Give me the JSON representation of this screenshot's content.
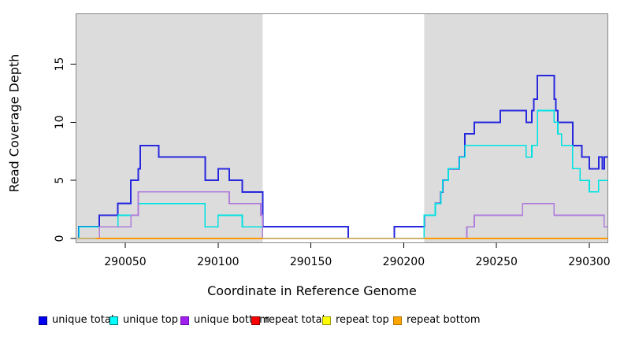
{
  "chart_data": {
    "type": "line",
    "subtype": "step-coverage",
    "title": "",
    "xlabel": "Coordinate in Reference Genome",
    "ylabel": "Read Coverage Depth",
    "xlim": [
      290023.5,
      290310
    ],
    "ylim": [
      -0.36,
      19.33
    ],
    "grid": false,
    "x_ticks": [
      290050,
      290100,
      290150,
      290200,
      290250,
      290300
    ],
    "x_tick_labels": [
      "290050",
      "290100",
      "290150",
      "290200",
      "290250",
      "290300"
    ],
    "y_ticks": [
      0,
      5,
      10,
      15
    ],
    "y_tick_labels": [
      "0",
      "5",
      "10",
      "15"
    ],
    "shaded_regions": {
      "color": "#DCDCDC",
      "ranges": [
        [
          290023.5,
          290124
        ],
        [
          290211,
          290310
        ]
      ]
    },
    "series": [
      {
        "name": "unique total",
        "color": "#2727DE",
        "width": 2,
        "segments": [
          [
            [
              290024,
              0
            ],
            [
              290025,
              1
            ],
            [
              290036,
              2
            ],
            [
              290046,
              3
            ],
            [
              290053,
              5
            ],
            [
              290057,
              6
            ],
            [
              290058,
              8
            ],
            [
              290068,
              7
            ],
            [
              290093,
              5
            ],
            [
              290100,
              6
            ],
            [
              290106,
              5
            ],
            [
              290113,
              4
            ],
            [
              290124,
              1
            ],
            [
              290170,
              0
            ],
            [
              290195,
              1
            ],
            [
              290211,
              2
            ],
            [
              290217,
              3
            ],
            [
              290220,
              4
            ],
            [
              290221,
              5
            ],
            [
              290224,
              6
            ],
            [
              290230,
              7
            ],
            [
              290233,
              9
            ],
            [
              290238,
              10
            ],
            [
              290252,
              11
            ],
            [
              290266,
              10
            ],
            [
              290269,
              11
            ],
            [
              290270,
              12
            ],
            [
              290272,
              14
            ],
            [
              290281,
              12
            ],
            [
              290282,
              11
            ],
            [
              290283,
              10
            ],
            [
              290291,
              8
            ],
            [
              290296,
              7
            ],
            [
              290300,
              6
            ],
            [
              290305,
              7
            ],
            [
              290307,
              6
            ],
            [
              290308,
              7
            ],
            [
              290310,
              7
            ]
          ]
        ]
      },
      {
        "name": "unique top",
        "color": "#00E2E2",
        "width": 1.6,
        "segments": [
          [
            [
              290024,
              0
            ],
            [
              290025,
              1
            ],
            [
              290046,
              2
            ],
            [
              290057,
              3
            ],
            [
              290093,
              1
            ],
            [
              290100,
              2
            ],
            [
              290113,
              1
            ],
            [
              290124,
              0
            ],
            [
              290211,
              2
            ],
            [
              290217,
              3
            ],
            [
              290220,
              4
            ],
            [
              290221,
              5
            ],
            [
              290224,
              6
            ],
            [
              290230,
              7
            ],
            [
              290233,
              8
            ],
            [
              290266,
              7
            ],
            [
              290269,
              8
            ],
            [
              290272,
              11
            ],
            [
              290281,
              10
            ],
            [
              290283,
              9
            ],
            [
              290285,
              8
            ],
            [
              290291,
              6
            ],
            [
              290295,
              5
            ],
            [
              290300,
              4
            ],
            [
              290305,
              5
            ],
            [
              290310,
              5
            ]
          ]
        ]
      },
      {
        "name": "unique bottom",
        "color": "#AF7CDC",
        "width": 1.6,
        "segments": [
          [
            [
              290024,
              0
            ],
            [
              290036,
              1
            ],
            [
              290053,
              2
            ],
            [
              290057,
              4
            ],
            [
              290106,
              3
            ],
            [
              290123,
              2
            ],
            [
              290124,
              0
            ],
            [
              290234,
              1
            ],
            [
              290238,
              2
            ],
            [
              290264,
              3
            ],
            [
              290281,
              2
            ],
            [
              290308,
              1
            ],
            [
              290310,
              1
            ]
          ]
        ]
      },
      {
        "name": "repeat total",
        "color": "#CC4444",
        "width": 1.2,
        "segments": [
          [
            [
              290024,
              0
            ],
            [
              290310,
              0
            ]
          ]
        ]
      },
      {
        "name": "repeat top",
        "color": "#E8E800",
        "width": 1.2,
        "segments": [
          [
            [
              290024,
              0
            ],
            [
              290310,
              0
            ]
          ]
        ]
      },
      {
        "name": "repeat bottom",
        "color": "#FF9900",
        "width": 1.8,
        "segments": [
          [
            [
              290034,
              0
            ],
            [
              290124,
              0
            ]
          ],
          [
            [
              290211,
              0
            ],
            [
              290310,
              0
            ]
          ]
        ]
      }
    ]
  },
  "legend": {
    "items": [
      {
        "label": "unique total",
        "fill": "#0000F0",
        "border": "#00008B"
      },
      {
        "label": "unique top",
        "fill": "#00FFFF",
        "border": "#007B7B"
      },
      {
        "label": "unique bottom",
        "fill": "#A020F0",
        "border": "#6A0DAD"
      },
      {
        "label": "repeat total",
        "fill": "#FF0000",
        "border": "#8B0000"
      },
      {
        "label": "repeat top",
        "fill": "#FFFF00",
        "border": "#9A9A00"
      },
      {
        "label": "repeat bottom",
        "fill": "#FFA500",
        "border": "#B87400"
      }
    ]
  }
}
